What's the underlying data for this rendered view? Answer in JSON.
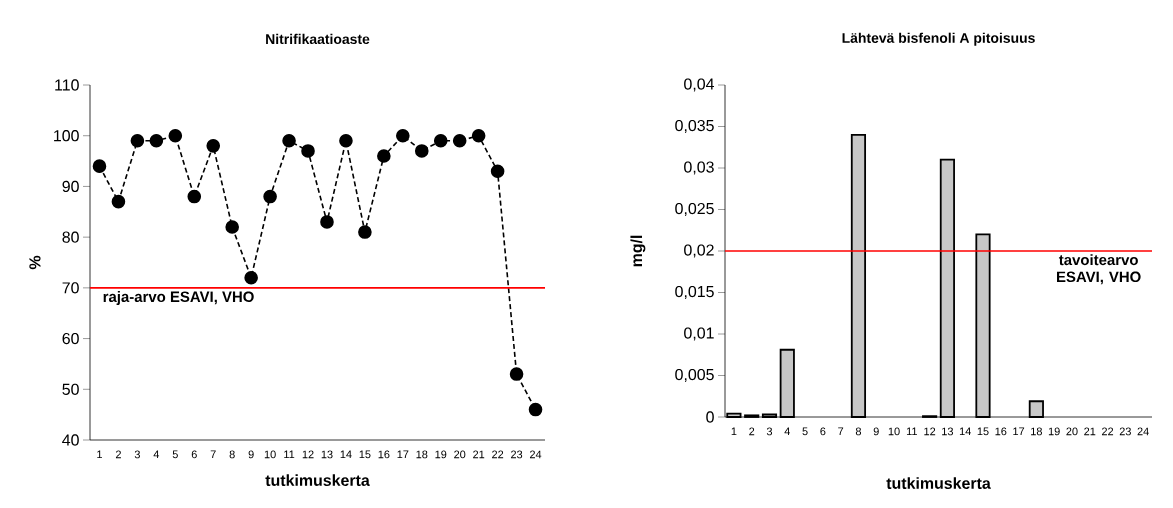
{
  "chart_data": [
    {
      "type": "line",
      "title": "Nitrifikaatioaste",
      "xlabel": "tutkimuskerta",
      "ylabel": "%",
      "categories": [
        "1",
        "2",
        "3",
        "4",
        "5",
        "6",
        "7",
        "8",
        "9",
        "10",
        "11",
        "12",
        "13",
        "14",
        "15",
        "16",
        "17",
        "18",
        "19",
        "20",
        "21",
        "22",
        "23",
        "24"
      ],
      "series": [
        {
          "color": "#000000",
          "values": [
            94,
            87,
            99,
            99,
            100,
            88,
            98,
            82,
            72,
            88,
            99,
            97,
            83,
            99,
            81,
            96,
            100,
            97,
            99,
            99,
            100,
            93,
            53,
            46
          ]
        }
      ],
      "ylim": [
        40,
        110
      ],
      "yticks": [
        40,
        50,
        60,
        70,
        80,
        90,
        100,
        110
      ],
      "marker": "circle",
      "line_style": "dashed",
      "ref_lines": [
        {
          "axis": "y",
          "value": 70,
          "label": "raja-arvo ESAVI, VHO",
          "color": "#ff0000"
        }
      ]
    },
    {
      "type": "bar",
      "title": "Lähtevä bisfenoli A pitoisuus",
      "xlabel": "tutkimuskerta",
      "ylabel": "mg/l",
      "categories": [
        "1",
        "2",
        "3",
        "4",
        "5",
        "6",
        "7",
        "8",
        "9",
        "10",
        "11",
        "12",
        "13",
        "14",
        "15",
        "16",
        "17",
        "18",
        "19",
        "20",
        "21",
        "22",
        "23",
        "24"
      ],
      "values": [
        0.0004,
        0.0002,
        0.0003,
        0.0081,
        null,
        null,
        null,
        0.034,
        null,
        null,
        null,
        0.0001,
        0.031,
        null,
        0.022,
        null,
        null,
        0.0019,
        null,
        null,
        null,
        null,
        null,
        null
      ],
      "color": "#000000",
      "ylim": [
        0,
        0.04
      ],
      "yticks": [
        0,
        {
          "value": 0.005,
          "label": "0,005"
        },
        {
          "value": 0.01,
          "label": "0,01"
        },
        {
          "value": 0.015,
          "label": "0,015"
        },
        {
          "value": 0.02,
          "label": "0,02"
        },
        {
          "value": 0.025,
          "label": "0,025"
        },
        {
          "value": 0.03,
          "label": "0,03"
        },
        {
          "value": 0.035,
          "label": "0,035"
        },
        {
          "value": 0.04,
          "label": "0,04"
        }
      ],
      "ref_lines": [
        {
          "axis": "y",
          "value": 0.02,
          "label": "tavoitearvo ESAVI, VHO",
          "color": "#ff0000"
        }
      ]
    }
  ]
}
